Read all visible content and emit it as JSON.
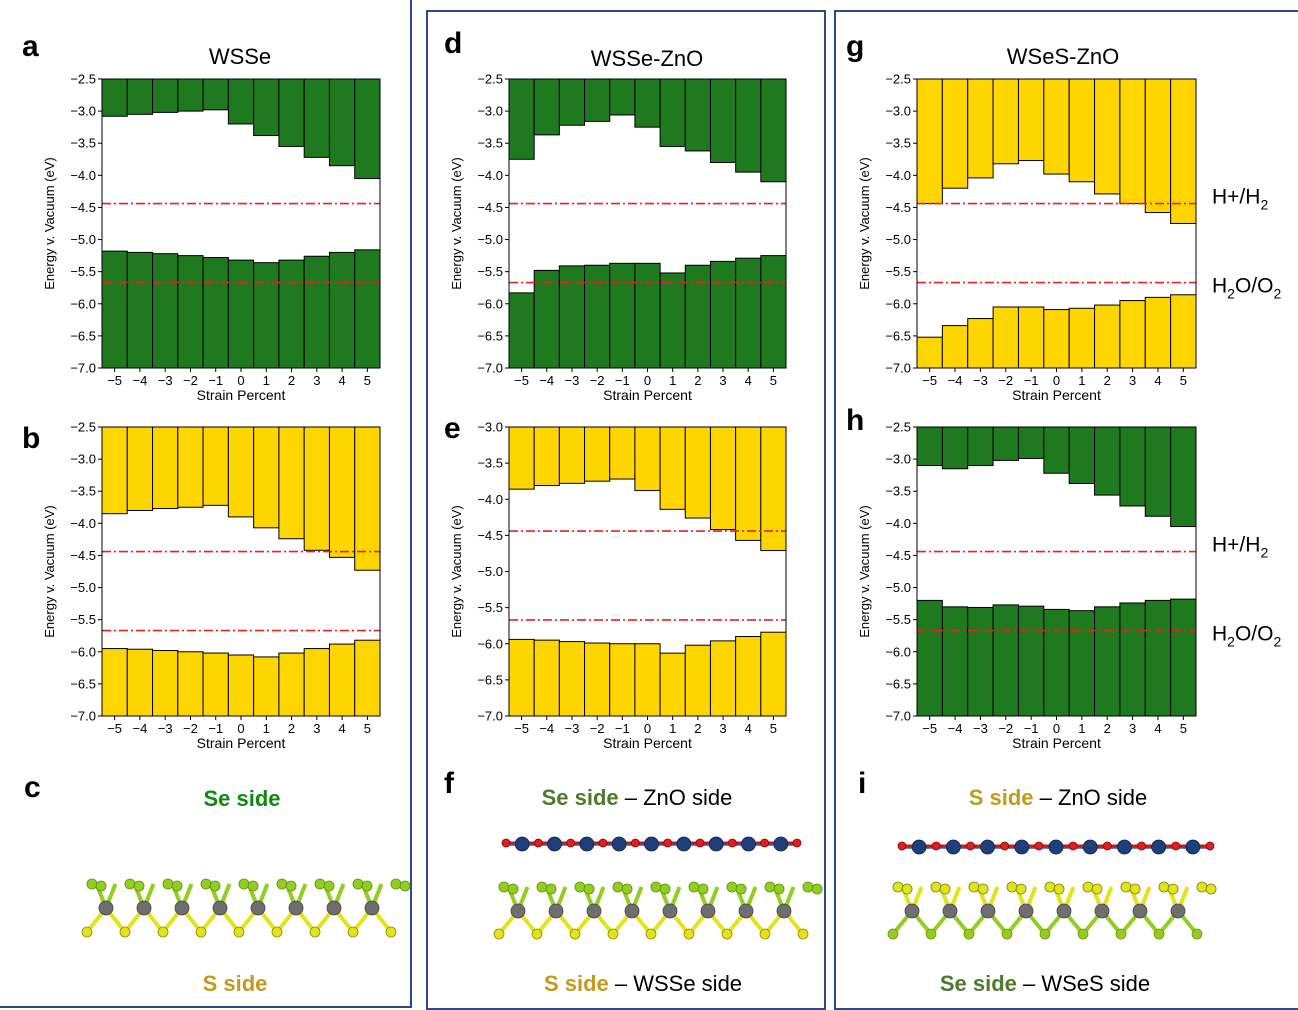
{
  "colors": {
    "green": "#1f7a1f",
    "yellow": "#ffd500",
    "ref_line": "#e8201e",
    "frame": "#2c4a86",
    "se_label": "#0e8a0e",
    "s_label": "#c49a1c",
    "se_label_dark": "#4d7a2e"
  },
  "axis_labels": {
    "ylabel": "Energy v. Vacuum (eV)",
    "xlabel": "Strain Percent"
  },
  "redox_labels": {
    "hplus": "H+/H",
    "hplus_sub": "2",
    "h2o": "H",
    "h2o_sub1": "2",
    "h2o_mid": "O/O",
    "h2o_sub2": "2"
  },
  "chart_data": [
    {
      "panel": "a",
      "title": "WSSe",
      "type": "bar",
      "categories": [
        "-5",
        "-4",
        "-3",
        "-2",
        "-1",
        "0",
        "1",
        "2",
        "3",
        "4",
        "5"
      ],
      "ylim": [
        -7.0,
        -2.5
      ],
      "yticks": [
        -2.5,
        -3.0,
        -3.5,
        -4.0,
        -4.5,
        -5.0,
        -5.5,
        -6.0,
        -6.5,
        -7.0
      ],
      "upper_fill": "green",
      "lower_fill": "green",
      "cbm": [
        -3.08,
        -3.05,
        -3.02,
        -3.0,
        -2.98,
        -3.2,
        -3.38,
        -3.55,
        -3.72,
        -3.85,
        -4.05
      ],
      "vbm": [
        -5.18,
        -5.2,
        -5.22,
        -5.25,
        -5.28,
        -5.32,
        -5.36,
        -5.32,
        -5.26,
        -5.2,
        -5.16
      ],
      "ref_lines": [
        -4.44,
        -5.67
      ],
      "show_redox_labels": false
    },
    {
      "panel": "b",
      "title": "",
      "type": "bar",
      "categories": [
        "-5",
        "-4",
        "-3",
        "-2",
        "-1",
        "0",
        "1",
        "2",
        "3",
        "4",
        "5"
      ],
      "ylim": [
        -7.0,
        -2.5
      ],
      "yticks": [
        -2.5,
        -3.0,
        -3.5,
        -4.0,
        -4.5,
        -5.0,
        -5.5,
        -6.0,
        -6.5,
        -7.0
      ],
      "upper_fill": "yellow",
      "lower_fill": "yellow",
      "cbm": [
        -3.85,
        -3.8,
        -3.77,
        -3.75,
        -3.72,
        -3.9,
        -4.07,
        -4.24,
        -4.42,
        -4.53,
        -4.73
      ],
      "vbm": [
        -5.95,
        -5.96,
        -5.98,
        -6.0,
        -6.02,
        -6.05,
        -6.08,
        -6.02,
        -5.95,
        -5.88,
        -5.82
      ],
      "ref_lines": [
        -4.44,
        -5.67
      ],
      "show_redox_labels": false
    },
    {
      "panel": "d",
      "title": "WSSe-ZnO",
      "type": "bar",
      "categories": [
        "-5",
        "-4",
        "-3",
        "-2",
        "-1",
        "0",
        "1",
        "2",
        "3",
        "4",
        "5"
      ],
      "ylim": [
        -7.0,
        -2.5
      ],
      "yticks": [
        -2.5,
        -3.0,
        -3.5,
        -4.0,
        -4.5,
        -5.0,
        -5.5,
        -6.0,
        -6.5,
        -7.0
      ],
      "upper_fill": "green",
      "lower_fill": "green",
      "cbm": [
        -3.75,
        -3.37,
        -3.22,
        -3.16,
        -3.06,
        -3.25,
        -3.55,
        -3.62,
        -3.8,
        -3.95,
        -4.1
      ],
      "vbm": [
        -5.83,
        -5.48,
        -5.41,
        -5.4,
        -5.37,
        -5.37,
        -5.52,
        -5.4,
        -5.34,
        -5.29,
        -5.25
      ],
      "ref_lines": [
        -4.44,
        -5.67
      ],
      "show_redox_labels": false
    },
    {
      "panel": "e",
      "title": "",
      "type": "bar",
      "categories": [
        "-5",
        "-4",
        "-3",
        "-2",
        "-1",
        "0",
        "1",
        "2",
        "3",
        "4",
        "5"
      ],
      "ylim": [
        -7.0,
        -3.0
      ],
      "yticks": [
        -3.0,
        -3.5,
        -4.0,
        -4.5,
        -5.0,
        -5.5,
        -6.0,
        -6.5,
        -7.0
      ],
      "upper_fill": "yellow",
      "lower_fill": "yellow",
      "cbm": [
        -3.86,
        -3.81,
        -3.78,
        -3.75,
        -3.72,
        -3.88,
        -4.14,
        -4.26,
        -4.42,
        -4.57,
        -4.71
      ],
      "vbm": [
        -5.94,
        -5.95,
        -5.97,
        -5.99,
        -6.0,
        -6.0,
        -6.13,
        -6.02,
        -5.96,
        -5.9,
        -5.84
      ],
      "ref_lines": [
        -4.44,
        -5.67
      ],
      "show_redox_labels": false
    },
    {
      "panel": "g",
      "title": "WSeS-ZnO",
      "type": "bar",
      "categories": [
        "-5",
        "-4",
        "-3",
        "-2",
        "-1",
        "0",
        "1",
        "2",
        "3",
        "4",
        "5"
      ],
      "ylim": [
        -7.0,
        -2.5
      ],
      "yticks": [
        -2.5,
        -3.0,
        -3.5,
        -4.0,
        -4.5,
        -5.0,
        -5.5,
        -6.0,
        -6.5,
        -7.0
      ],
      "upper_fill": "yellow",
      "lower_fill": "yellow",
      "cbm": [
        -4.44,
        -4.2,
        -4.04,
        -3.82,
        -3.77,
        -3.98,
        -4.1,
        -4.29,
        -4.44,
        -4.58,
        -4.75
      ],
      "vbm": [
        -6.52,
        -6.34,
        -6.23,
        -6.05,
        -6.05,
        -6.09,
        -6.07,
        -6.02,
        -5.95,
        -5.9,
        -5.86
      ],
      "ref_lines": [
        -4.44,
        -5.67
      ],
      "show_redox_labels": true
    },
    {
      "panel": "h",
      "title": "",
      "type": "bar",
      "categories": [
        "-5",
        "-4",
        "-3",
        "-2",
        "-1",
        "0",
        "1",
        "2",
        "3",
        "4",
        "5"
      ],
      "ylim": [
        -7.0,
        -2.5
      ],
      "yticks": [
        -2.5,
        -3.0,
        -3.5,
        -4.0,
        -4.5,
        -5.0,
        -5.5,
        -6.0,
        -6.5,
        -7.0
      ],
      "upper_fill": "green",
      "lower_fill": "green",
      "cbm": [
        -3.1,
        -3.15,
        -3.1,
        -3.02,
        -2.99,
        -3.22,
        -3.38,
        -3.56,
        -3.73,
        -3.89,
        -4.05
      ],
      "vbm": [
        -5.2,
        -5.3,
        -5.31,
        -5.27,
        -5.29,
        -5.34,
        -5.36,
        -5.3,
        -5.24,
        -5.2,
        -5.18
      ],
      "ref_lines": [
        -4.44,
        -5.67
      ],
      "show_redox_labels": true
    }
  ],
  "panels": {
    "a": "a",
    "b": "b",
    "c": "c",
    "d": "d",
    "e": "e",
    "f": "f",
    "g": "g",
    "h": "h",
    "i": "i"
  },
  "structures": {
    "c": {
      "top": "Se side",
      "bottom": "S side"
    },
    "f": {
      "top_colored": "Se side",
      "top_rest": " – ZnO side",
      "bottom_colored": "S side",
      "bottom_rest": " – WSSe side"
    },
    "i": {
      "top_colored": "S side",
      "top_rest": " – ZnO side",
      "bottom_colored": "Se side",
      "bottom_rest": " – WSeS side"
    }
  }
}
